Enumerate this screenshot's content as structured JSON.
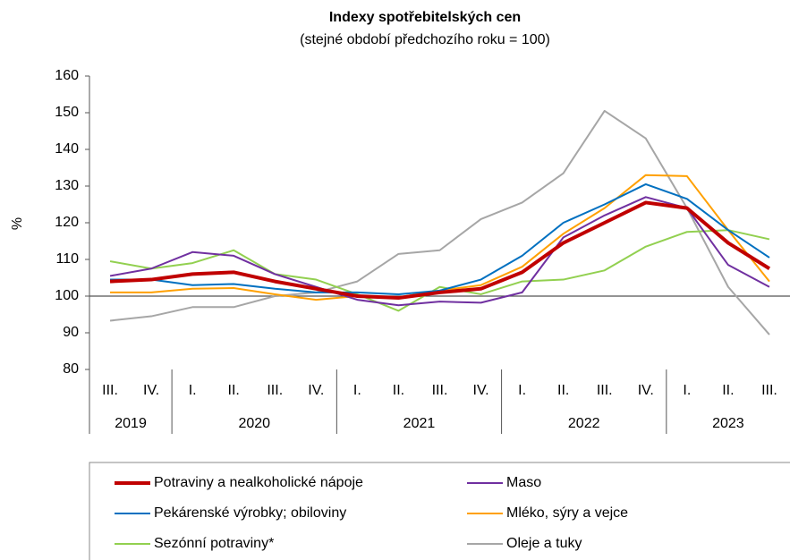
{
  "chart_data": {
    "type": "line",
    "title": "Indexy spotřebitelských cen",
    "subtitle": "(stejné období předchozího roku = 100)",
    "y_label": "%",
    "categories": [
      "III.",
      "IV.",
      "I.",
      "II.",
      "III.",
      "IV.",
      "I.",
      "II.",
      "III.",
      "IV.",
      "I.",
      "II.",
      "III.",
      "IV.",
      "I.",
      "II.",
      "III."
    ],
    "x_groups": [
      {
        "label": "2019",
        "span": 2
      },
      {
        "label": "2020",
        "span": 4
      },
      {
        "label": "2021",
        "span": 4
      },
      {
        "label": "2022",
        "span": 4
      },
      {
        "label": "2023",
        "span": 3
      }
    ],
    "ylim": [
      80,
      160
    ],
    "yticks": [
      80,
      90,
      100,
      110,
      120,
      130,
      140,
      150,
      160
    ],
    "reference_line": 100,
    "series": [
      {
        "name": "Potraviny a nealkoholické nápoje",
        "color": "#c00000",
        "values": [
          104,
          104.5,
          106,
          106.5,
          104,
          102,
          100,
          99.5,
          101,
          102,
          106.5,
          114.5,
          120,
          125.5,
          124,
          114.5,
          107.5
        ]
      },
      {
        "name": "Maso",
        "color": "#7030a0",
        "values": [
          105.5,
          107.5,
          112,
          111,
          106,
          102.5,
          99,
          97.5,
          98.5,
          98.2,
          101,
          116,
          122,
          127,
          124,
          108.5,
          102.5
        ]
      },
      {
        "name": "Pekárenské výrobky; obiloviny",
        "color": "#0070c0",
        "values": [
          104.5,
          104.5,
          103,
          103.3,
          102,
          101,
          101,
          100.5,
          101.5,
          104.5,
          111,
          120,
          125,
          130.5,
          126.5,
          118,
          110.5
        ]
      },
      {
        "name": "Mléko, sýry a vejce",
        "color": "#ffa000",
        "values": [
          101,
          101,
          102,
          102.2,
          100.5,
          99,
          100,
          99.7,
          101.5,
          103,
          108,
          117,
          124,
          133,
          132.7,
          118,
          104
        ]
      },
      {
        "name": "Sezónní potraviny*",
        "color": "#92d050",
        "values": [
          109.5,
          107.5,
          109,
          112.5,
          106,
          104.5,
          100.5,
          96,
          102.5,
          100.5,
          104,
          104.5,
          107,
          113.5,
          117.5,
          118,
          115.5
        ]
      },
      {
        "name": "Oleje a tuky",
        "color": "#a6a6a6",
        "values": [
          93.3,
          94.5,
          97,
          97,
          100,
          101,
          104,
          111.5,
          112.5,
          121,
          125.5,
          133.5,
          150.5,
          143,
          124,
          102.5,
          89.5
        ]
      }
    ]
  }
}
